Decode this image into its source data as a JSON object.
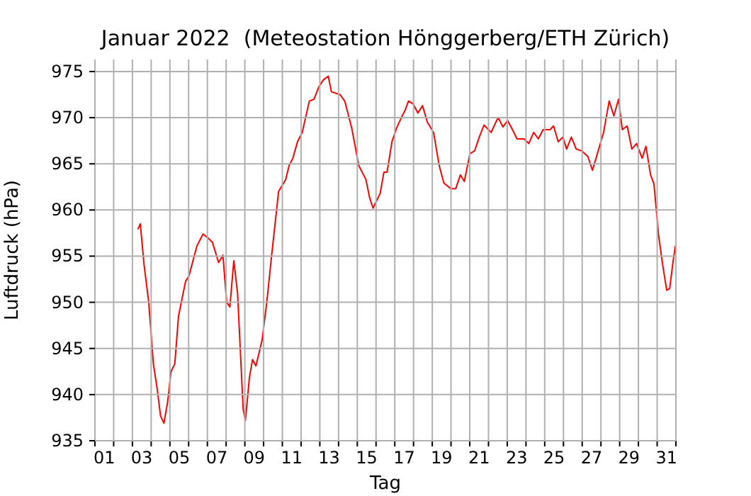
{
  "chart_data": {
    "type": "line",
    "title": "Januar 2022  (Meteostation Hönggerberg/ETH Zürich)",
    "xlabel": "Tag",
    "ylabel": "Luftdruck (hPa)",
    "x": [
      3.29,
      3.42,
      3.62,
      3.87,
      4.12,
      4.33,
      4.5,
      4.68,
      4.88,
      5.06,
      5.26,
      5.46,
      5.84,
      6.01,
      6.44,
      6.77,
      7.07,
      7.27,
      7.6,
      7.83,
      8.03,
      8.2,
      8.41,
      8.61,
      8.91,
      9.03,
      9.24,
      9.41,
      9.59,
      9.92,
      10.17,
      10.43,
      10.8,
      11.18,
      11.36,
      11.56,
      11.81,
      12.06,
      12.44,
      12.69,
      12.94,
      13.19,
      13.45,
      13.62,
      14.08,
      14.33,
      14.7,
      15.08,
      15.46,
      15.66,
      15.84,
      16.22,
      16.42,
      16.59,
      16.85,
      17.1,
      17.35,
      17.55,
      17.73,
      17.98,
      18.23,
      18.48,
      18.74,
      19.07,
      19.37,
      19.62,
      20.0,
      20.25,
      20.5,
      20.71,
      21.01,
      21.26,
      21.51,
      21.76,
      22.14,
      22.39,
      22.52,
      22.77,
      23.02,
      23.28,
      23.52,
      23.9,
      24.15,
      24.41,
      24.66,
      24.91,
      25.29,
      25.47,
      25.72,
      25.97,
      26.17,
      26.42,
      26.68,
      26.98,
      27.3,
      27.55,
      27.81,
      28.14,
      28.44,
      28.69,
      28.94,
      29.14,
      29.4,
      29.65,
      29.9,
      30.2,
      30.4,
      30.65,
      30.83,
      31.08,
      31.29,
      31.51,
      31.67,
      31.84,
      31.97
    ],
    "series": [
      {
        "color": "#ff0000",
        "values": [
          957.9,
          958.5,
          954.1,
          950.0,
          943.3,
          940.5,
          937.7,
          936.9,
          939.2,
          942.5,
          943.3,
          948.5,
          952.3,
          952.8,
          956.1,
          957.4,
          956.9,
          956.5,
          954.3,
          955.1,
          950.0,
          949.5,
          954.5,
          951.0,
          938.4,
          937.2,
          941.8,
          943.8,
          943.1,
          945.9,
          950.0,
          955.1,
          962.0,
          963.3,
          964.8,
          965.6,
          967.4,
          968.4,
          971.8,
          972.0,
          973.3,
          974.1,
          974.5,
          972.8,
          972.5,
          971.8,
          968.9,
          964.8,
          963.3,
          961.3,
          960.2,
          961.8,
          964.1,
          964.1,
          967.4,
          968.9,
          970.0,
          970.8,
          971.8,
          971.5,
          970.5,
          971.3,
          969.5,
          968.4,
          964.8,
          962.9,
          962.3,
          962.3,
          963.8,
          963.1,
          966.1,
          966.4,
          967.9,
          969.2,
          968.4,
          969.5,
          970.0,
          969.0,
          969.7,
          968.7,
          967.7,
          967.7,
          967.2,
          968.4,
          967.7,
          968.7,
          968.7,
          969.1,
          967.4,
          967.9,
          966.6,
          967.9,
          966.6,
          966.4,
          965.8,
          964.3,
          966.1,
          968.4,
          971.8,
          970.2,
          972.0,
          968.7,
          969.1,
          966.6,
          967.2,
          965.6,
          966.9,
          963.8,
          962.8,
          957.2,
          954.1,
          951.3,
          951.5,
          954.3,
          956.1
        ]
      }
    ],
    "xlim": [
      1,
      32
    ],
    "xticks": [
      {
        "value": 1,
        "label": null
      },
      {
        "value": 2,
        "label": null
      },
      {
        "value": 3,
        "label": null
      },
      {
        "value": 4,
        "label": null
      },
      {
        "value": 5,
        "label": null
      },
      {
        "value": 6,
        "label": null
      },
      {
        "value": 7,
        "label": null
      },
      {
        "value": 8,
        "label": null
      },
      {
        "value": 9,
        "label": null
      },
      {
        "value": 10,
        "label": null
      },
      {
        "value": 11,
        "label": null
      },
      {
        "value": 12,
        "label": null
      },
      {
        "value": 13,
        "label": null
      },
      {
        "value": 14,
        "label": null
      },
      {
        "value": 15,
        "label": null
      },
      {
        "value": 16,
        "label": null
      },
      {
        "value": 17,
        "label": null
      },
      {
        "value": 18,
        "label": null
      },
      {
        "value": 19,
        "label": null
      },
      {
        "value": 20,
        "label": null
      },
      {
        "value": 21,
        "label": null
      },
      {
        "value": 22,
        "label": null
      },
      {
        "value": 23,
        "label": null
      },
      {
        "value": 24,
        "label": null
      },
      {
        "value": 25,
        "label": null
      },
      {
        "value": 26,
        "label": null
      },
      {
        "value": 27,
        "label": null
      },
      {
        "value": 28,
        "label": null
      },
      {
        "value": 29,
        "label": null
      },
      {
        "value": 30,
        "label": null
      },
      {
        "value": 31,
        "label": null
      },
      {
        "value": 32,
        "label": null
      },
      {
        "value": 1.5,
        "label": "01"
      },
      {
        "value": 3.5,
        "label": "03"
      },
      {
        "value": 5.5,
        "label": "05"
      },
      {
        "value": 7.5,
        "label": "07"
      },
      {
        "value": 9.5,
        "label": "09"
      },
      {
        "value": 11.5,
        "label": "11"
      },
      {
        "value": 13.5,
        "label": "13"
      },
      {
        "value": 15.5,
        "label": "15"
      },
      {
        "value": 17.5,
        "label": "17"
      },
      {
        "value": 19.5,
        "label": "19"
      },
      {
        "value": 21.5,
        "label": "21"
      },
      {
        "value": 23.5,
        "label": "23"
      },
      {
        "value": 25.5,
        "label": "25"
      },
      {
        "value": 27.5,
        "label": "27"
      },
      {
        "value": 29.5,
        "label": "29"
      },
      {
        "value": 31.5,
        "label": "31"
      }
    ],
    "ylim": [
      935,
      976.3
    ],
    "yticks": [
      935,
      940,
      945,
      950,
      955,
      960,
      965,
      970,
      975
    ],
    "grid": true,
    "marker": "none",
    "line_style": "solid"
  }
}
